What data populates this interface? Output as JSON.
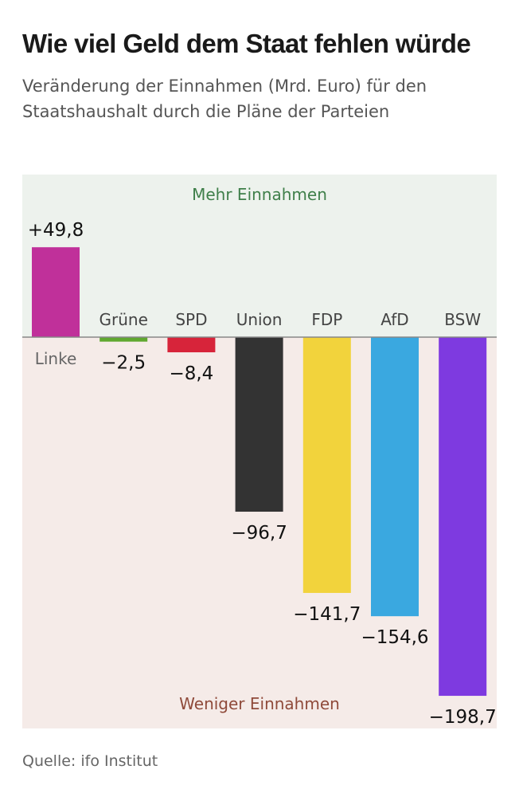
{
  "title": "Wie viel Geld dem Staat fehlen würde",
  "subtitle": "Veränderung der Einnahmen (Mrd. Euro) für den Staatshaushalt durch die Pläne der Parteien",
  "source": "Quelle: ifo Institut",
  "regions": {
    "positive_label": "Mehr Einnahmen",
    "negative_label": "Weniger Einnahmen",
    "positive_bg": "#edf2ed",
    "negative_bg": "#f5ebe8",
    "positive_text_color": "#3f7f4a",
    "negative_text_color": "#8f4a3a"
  },
  "chart_data": {
    "type": "bar",
    "categories": [
      "Linke",
      "Grüne",
      "SPD",
      "Union",
      "FDP",
      "AfD",
      "BSW"
    ],
    "values": [
      49.8,
      -2.5,
      -8.4,
      -96.7,
      -141.7,
      -154.6,
      -198.7
    ],
    "value_labels": [
      "+49,8",
      "−2,5",
      "−8,4",
      "−96,7",
      "−141,7",
      "−154,6",
      "−198,7"
    ],
    "colors": [
      "#c0309a",
      "#5fa82f",
      "#d7243a",
      "#333333",
      "#f2d33c",
      "#3aa8e0",
      "#7e3ae0"
    ],
    "title": "Wie viel Geld dem Staat fehlen würde",
    "ylabel": "",
    "xlabel": "",
    "ylim": [
      -210,
      60
    ],
    "grid": false
  }
}
